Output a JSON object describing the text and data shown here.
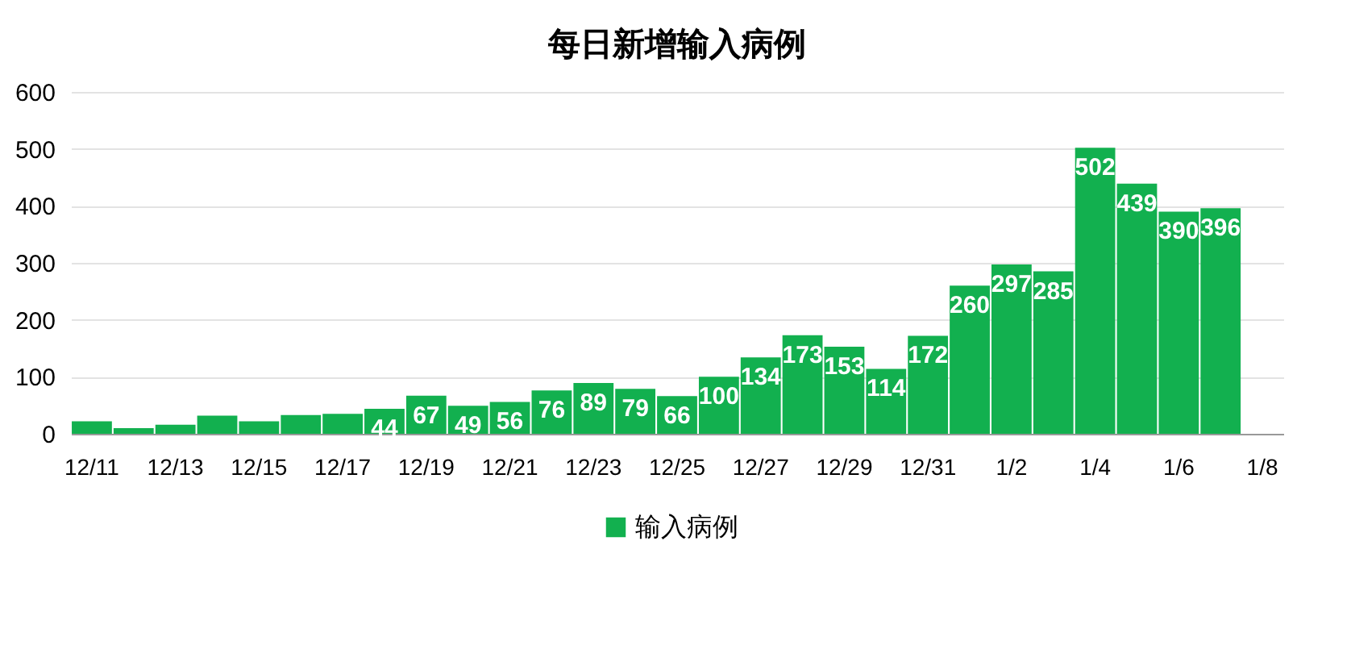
{
  "chart_data": {
    "type": "bar",
    "title": "每日新增输入病例",
    "categories": [
      "12/11",
      null,
      "12/13",
      null,
      "12/15",
      null,
      "12/17",
      null,
      "12/19",
      null,
      "12/21",
      null,
      "12/23",
      null,
      "12/25",
      null,
      "12/27",
      null,
      "12/29",
      null,
      "12/31",
      null,
      "1/2",
      null,
      "1/4",
      null,
      "1/6",
      null,
      "1/8"
    ],
    "series": [
      {
        "name": "输入病例",
        "color": "#12b04f",
        "values": [
          22,
          10,
          16,
          32,
          22,
          33,
          35,
          44,
          67,
          49,
          56,
          76,
          89,
          79,
          66,
          100,
          134,
          173,
          153,
          114,
          172,
          260,
          297,
          285,
          502,
          439,
          390,
          396,
          null
        ],
        "value_labels": [
          null,
          null,
          null,
          null,
          null,
          null,
          null,
          "44",
          "67",
          "49",
          "56",
          "76",
          "89",
          "79",
          "66",
          "100",
          "134",
          "173",
          "153",
          "114",
          "172",
          "260",
          "297",
          "285",
          "502",
          "439",
          "390",
          "396",
          null
        ]
      }
    ],
    "ylim": [
      0,
      600
    ],
    "yticks": [
      0,
      100,
      200,
      300,
      400,
      500,
      600
    ],
    "grid": "y",
    "legend": "bottom"
  }
}
